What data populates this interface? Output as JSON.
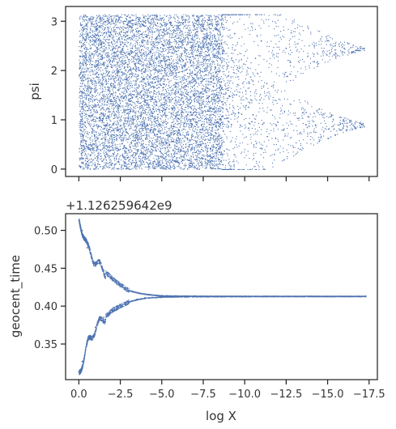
{
  "colors": {
    "marker": "#4c72b0",
    "axis": "#262626",
    "text": "#333333"
  },
  "chart_data": [
    {
      "type": "scatter",
      "xlabel": "",
      "ylabel": "psi",
      "xlim": [
        0.8,
        -18.0
      ],
      "ylim": [
        -0.15,
        3.3
      ],
      "xticks": [
        0,
        -2.5,
        -5,
        -7.5,
        -10,
        -12.5,
        -15,
        -17.5
      ],
      "xtick_labels_visible": false,
      "yticks": [
        0,
        1,
        2,
        3
      ],
      "ytick_labels": [
        "0",
        "1",
        "2",
        "3"
      ],
      "point_density": "dense, ~uniform over psi in [0, 3.14] for log X between 0 and -8.5, thinning out to about -17.2",
      "series": [
        {
          "values": [
            {
              "x": -0.1,
              "y": 0.05
            },
            {
              "x": -0.3,
              "y": 3.1
            },
            {
              "x": -0.6,
              "y": 1.5
            },
            {
              "x": -1.0,
              "y": 2.4
            },
            {
              "x": -1.6,
              "y": 0.7
            },
            {
              "x": -2.3,
              "y": 1.9
            },
            {
              "x": -3.1,
              "y": 2.9
            },
            {
              "x": -4.0,
              "y": 0.3
            },
            {
              "x": -5.2,
              "y": 1.2
            },
            {
              "x": -6.3,
              "y": 2.2
            },
            {
              "x": -7.4,
              "y": 0.9
            },
            {
              "x": -8.2,
              "y": 2.7
            },
            {
              "x": -9.2,
              "y": 0.9
            },
            {
              "x": -9.4,
              "y": 2.75
            },
            {
              "x": -10.5,
              "y": 1.1
            },
            {
              "x": -11.0,
              "y": 2.6
            },
            {
              "x": -12.0,
              "y": 0.95
            },
            {
              "x": -12.5,
              "y": 2.45
            },
            {
              "x": -13.7,
              "y": 0.9
            },
            {
              "x": -14.2,
              "y": 2.5
            },
            {
              "x": -16.0,
              "y": 2.45
            },
            {
              "x": -17.2,
              "y": 2.45
            }
          ]
        }
      ]
    },
    {
      "type": "scatter",
      "xlabel": "log X",
      "ylabel": "geocent_time",
      "offset_text": "+1.126259642e9",
      "xlim": [
        0.8,
        -18.0
      ],
      "ylim": [
        0.303,
        0.522
      ],
      "xticks": [
        0,
        -2.5,
        -5,
        -7.5,
        -10,
        -12.5,
        -15,
        -17.5
      ],
      "xtick_labels": [
        "0.0",
        "−2.5",
        "−5.0",
        "−7.5",
        "−10.0",
        "−12.5",
        "−15.0",
        "−17.5"
      ],
      "yticks": [
        0.35,
        0.4,
        0.45,
        0.5
      ],
      "ytick_labels": [
        "0.35",
        "0.40",
        "0.45",
        "0.50"
      ],
      "converged_value": 0.413,
      "series": [
        {
          "values": [
            {
              "x": 0.0,
              "y": 0.513
            },
            {
              "x": -0.2,
              "y": 0.5
            },
            {
              "x": -0.5,
              "y": 0.477
            },
            {
              "x": -1.0,
              "y": 0.458
            },
            {
              "x": -1.5,
              "y": 0.447
            },
            {
              "x": -2.0,
              "y": 0.437
            },
            {
              "x": -2.5,
              "y": 0.428
            },
            {
              "x": -3.0,
              "y": 0.421
            },
            {
              "x": -3.5,
              "y": 0.418
            },
            {
              "x": -4.0,
              "y": 0.416
            },
            {
              "x": -5.0,
              "y": 0.414
            },
            {
              "x": -7.0,
              "y": 0.4135
            },
            {
              "x": -10.0,
              "y": 0.4133
            },
            {
              "x": -14.0,
              "y": 0.4132
            },
            {
              "x": -17.3,
              "y": 0.4132
            }
          ]
        },
        {
          "values": [
            {
              "x": 0.0,
              "y": 0.313
            },
            {
              "x": -0.2,
              "y": 0.327
            },
            {
              "x": -0.5,
              "y": 0.35
            },
            {
              "x": -1.0,
              "y": 0.372
            },
            {
              "x": -1.5,
              "y": 0.385
            },
            {
              "x": -2.0,
              "y": 0.395
            },
            {
              "x": -2.5,
              "y": 0.401
            },
            {
              "x": -3.0,
              "y": 0.406
            },
            {
              "x": -3.5,
              "y": 0.409
            },
            {
              "x": -4.0,
              "y": 0.411
            },
            {
              "x": -5.0,
              "y": 0.4125
            },
            {
              "x": -7.0,
              "y": 0.413
            },
            {
              "x": -10.0,
              "y": 0.4131
            },
            {
              "x": -14.0,
              "y": 0.4132
            },
            {
              "x": -17.3,
              "y": 0.4132
            }
          ]
        }
      ]
    }
  ]
}
